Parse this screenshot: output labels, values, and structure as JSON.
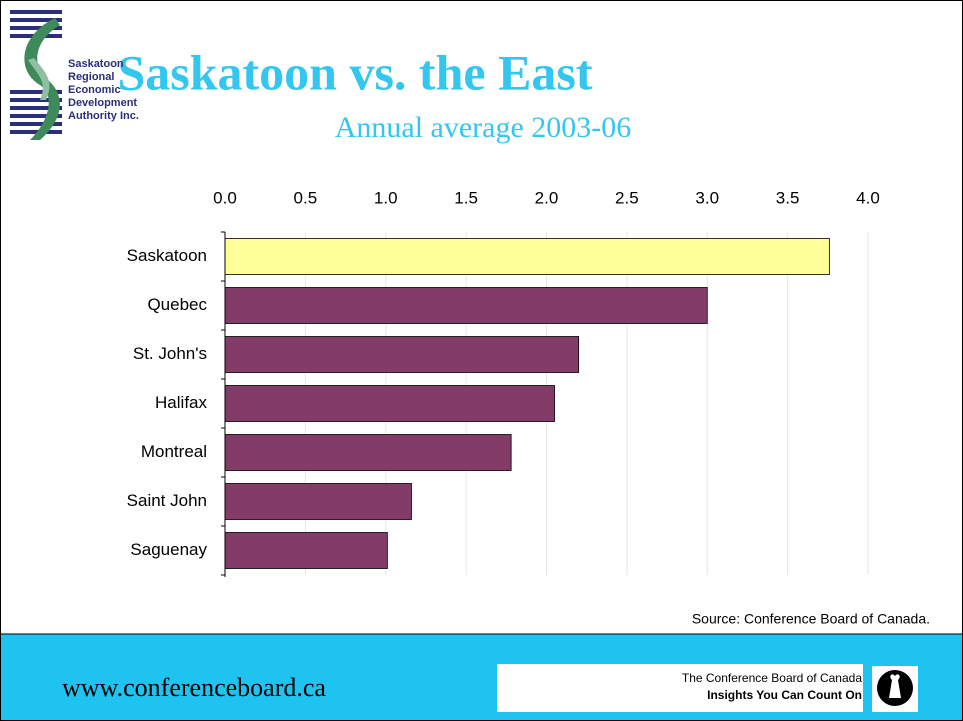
{
  "chart_data": {
    "type": "bar",
    "orientation": "horizontal",
    "title": "Saskatoon vs. the East",
    "subtitle": "Annual average 2003-06",
    "categories": [
      "Saskatoon",
      "Quebec",
      "St. John's",
      "Halifax",
      "Montreal",
      "Saint John",
      "Saguenay"
    ],
    "values": [
      3.76,
      3.0,
      2.2,
      2.05,
      1.78,
      1.16,
      1.01
    ],
    "colors": [
      "#ffff99",
      "#833c68",
      "#833c68",
      "#833c68",
      "#833c68",
      "#833c68",
      "#833c68"
    ],
    "xlim": [
      0,
      4
    ],
    "xticks": [
      {
        "value": 0,
        "label": "0.0"
      },
      0.5,
      {
        "value": 1,
        "label": "1.0"
      },
      1.5,
      {
        "value": 2,
        "label": "2.0"
      },
      2.5,
      {
        "value": 3,
        "label": "3.0"
      },
      3.5,
      {
        "value": 4,
        "label": "4.0"
      }
    ],
    "grid": true,
    "source": "Source: Conference Board of Canada."
  },
  "logo": {
    "lines": [
      "Saskatoon",
      "Regional",
      "Economic",
      "Development",
      "Authority Inc."
    ]
  },
  "footer": {
    "url": "www.conferenceboard.ca",
    "org": "The Conference Board of Canada",
    "tagline": "Insights You Can Count On"
  }
}
